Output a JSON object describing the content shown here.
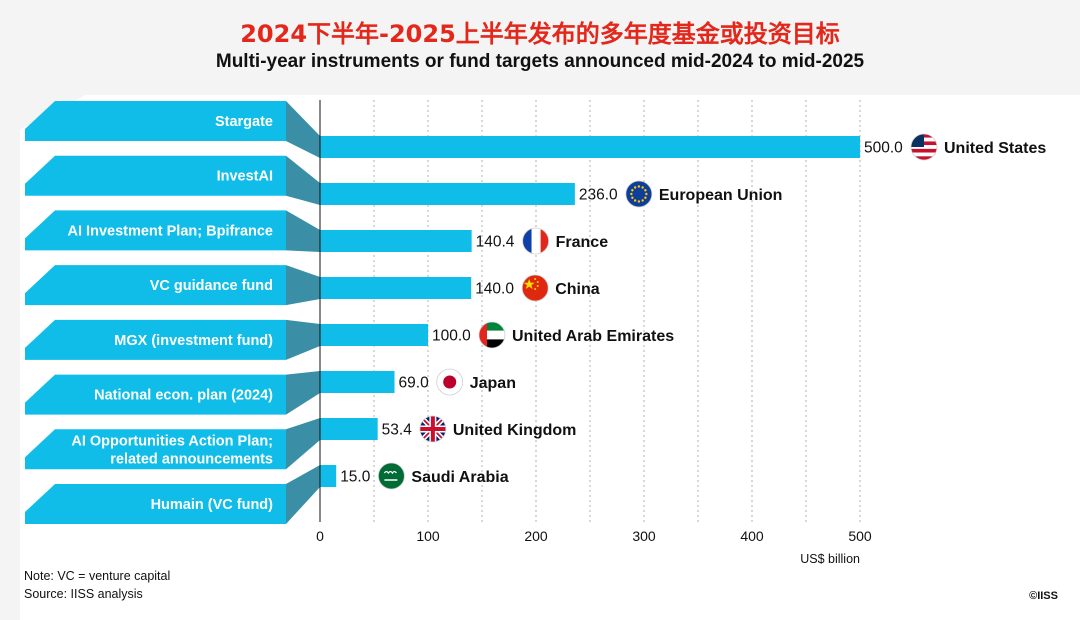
{
  "title_zh": "2024下半年-2025上半年发布的多年度基金或投资目标",
  "title_en": "Multi-year instruments or fund targets announced mid-2024 to mid-2025",
  "note": "Note: VC = venture capital",
  "source": "Source: IISS analysis",
  "copyright": "©IISS",
  "colors": {
    "bar": "#10bde8",
    "fold": "#3a8fa6",
    "title_red": "#e3271b",
    "grid": "#b0b0b0"
  },
  "chart_data": {
    "type": "bar",
    "orientation": "horizontal",
    "xlabel": "US$ billion",
    "xlim": [
      0,
      500
    ],
    "xticks": [
      "0",
      "100",
      "200",
      "300",
      "400",
      "500"
    ],
    "grid": true,
    "bars": [
      {
        "instrument": "Stargate",
        "country": "United States",
        "value": 500.0,
        "label": "500.0",
        "flag_icon": "us-flag-icon"
      },
      {
        "instrument": "InvestAI",
        "country": "European Union",
        "value": 236.0,
        "label": "236.0",
        "flag_icon": "eu-flag-icon"
      },
      {
        "instrument": "AI Investment Plan; Bpifrance",
        "country": "France",
        "value": 140.4,
        "label": "140.4",
        "flag_icon": "france-flag-icon"
      },
      {
        "instrument": "VC guidance fund",
        "country": "China",
        "value": 140.0,
        "label": "140.0",
        "flag_icon": "china-flag-icon"
      },
      {
        "instrument": "MGX (investment fund)",
        "country": "United Arab Emirates",
        "value": 100.0,
        "label": "100.0",
        "flag_icon": "uae-flag-icon"
      },
      {
        "instrument": "National econ. plan (2024)",
        "country": "Japan",
        "value": 69.0,
        "label": "69.0",
        "flag_icon": "japan-flag-icon"
      },
      {
        "instrument": "AI Opportunities Action Plan;\nrelated announcements",
        "country": "United Kingdom",
        "value": 53.4,
        "label": "53.4",
        "flag_icon": "uk-flag-icon"
      },
      {
        "instrument": "Humain (VC fund)",
        "country": "Saudi Arabia",
        "value": 15.0,
        "label": "15.0",
        "flag_icon": "saudi-flag-icon"
      }
    ]
  }
}
